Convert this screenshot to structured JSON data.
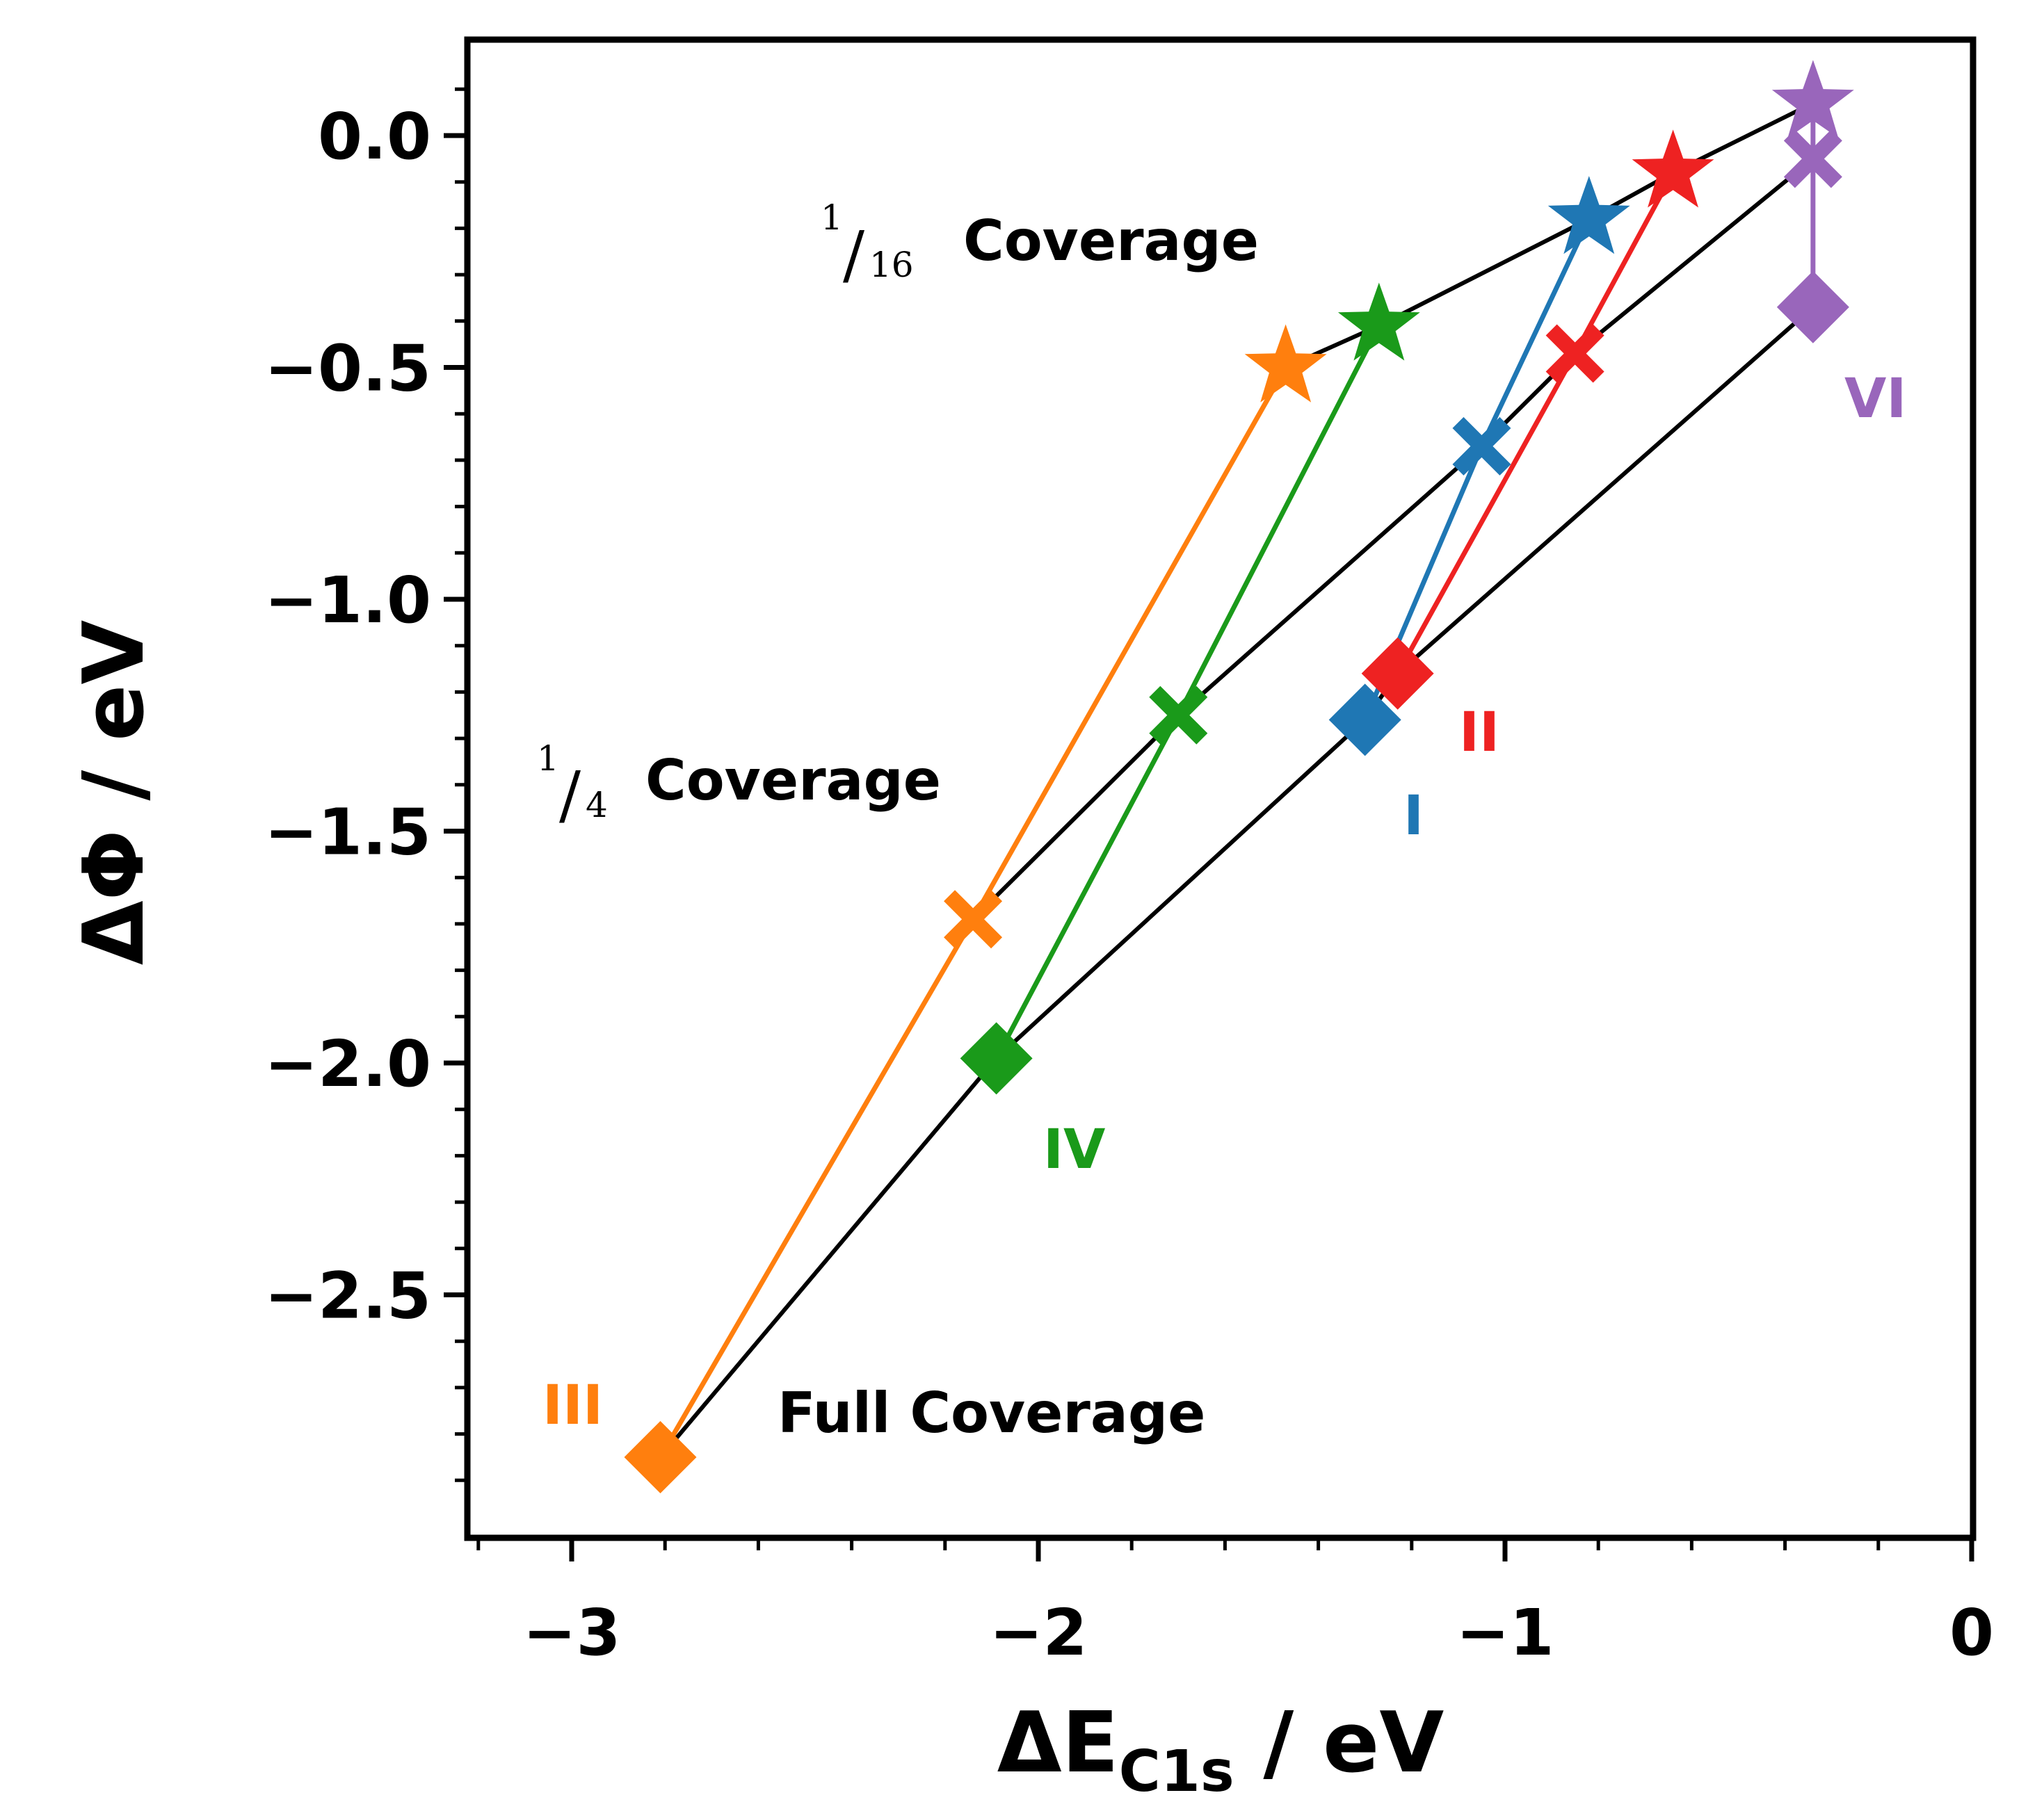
{
  "chart_data": {
    "type": "scatter",
    "xlabel_main": "ΔE",
    "xlabel_sub": "C1s",
    "xlabel_unit": " / eV",
    "ylabel": "ΔΦ / eV",
    "xlim": [
      -3.2,
      0.02
    ],
    "ylim": [
      -3.0,
      0.2
    ],
    "x_ticks": [
      -3,
      -2,
      -1,
      0
    ],
    "x_tick_labels": [
      "−3",
      "−2",
      "−1",
      "0"
    ],
    "y_ticks": [
      0.0,
      -0.5,
      -1.0,
      -1.5,
      -2.0,
      -2.5
    ],
    "y_tick_labels": [
      "0.0",
      "−0.5",
      "−1.0",
      "−1.5",
      "−2.0",
      "−2.5"
    ],
    "series": [
      {
        "name": "I",
        "color": "#1f77b4",
        "points": [
          {
            "x": -0.82,
            "y": -0.18,
            "marker": "star"
          },
          {
            "x": -1.05,
            "y": -0.67,
            "marker": "x"
          },
          {
            "x": -1.3,
            "y": -1.26,
            "marker": "diamond"
          }
        ]
      },
      {
        "name": "II",
        "color": "#ee2222",
        "points": [
          {
            "x": -0.64,
            "y": -0.08,
            "marker": "star"
          },
          {
            "x": -0.85,
            "y": -0.47,
            "marker": "x"
          },
          {
            "x": -1.23,
            "y": -1.16,
            "marker": "diamond"
          }
        ]
      },
      {
        "name": "III",
        "color": "#ff7f0e",
        "points": [
          {
            "x": -1.47,
            "y": -0.5,
            "marker": "star"
          },
          {
            "x": -2.14,
            "y": -1.69,
            "marker": "x"
          },
          {
            "x": -2.81,
            "y": -2.85,
            "marker": "diamond"
          }
        ]
      },
      {
        "name": "IV",
        "color": "#1a9a1a",
        "points": [
          {
            "x": -1.27,
            "y": -0.41,
            "marker": "star"
          },
          {
            "x": -1.7,
            "y": -1.25,
            "marker": "x"
          },
          {
            "x": -2.09,
            "y": -1.99,
            "marker": "diamond"
          }
        ]
      },
      {
        "name": "VI",
        "color": "#9966bb",
        "points": [
          {
            "x": -0.34,
            "y": 0.07,
            "marker": "star"
          },
          {
            "x": -0.34,
            "y": -0.05,
            "marker": "x"
          },
          {
            "x": -0.34,
            "y": -0.37,
            "marker": "diamond"
          }
        ]
      }
    ],
    "coverage_lines": [
      {
        "name": "1/16 Coverage",
        "points": [
          [
            -1.47,
            -0.5
          ],
          [
            -1.27,
            -0.41
          ],
          [
            -0.82,
            -0.18
          ],
          [
            -0.64,
            -0.08
          ],
          [
            -0.34,
            0.07
          ]
        ]
      },
      {
        "name": "1/4 Coverage",
        "points": [
          [
            -2.14,
            -1.69
          ],
          [
            -1.7,
            -1.25
          ],
          [
            -1.05,
            -0.67
          ],
          [
            -0.85,
            -0.47
          ],
          [
            -0.34,
            -0.05
          ]
        ]
      },
      {
        "name": "Full Coverage",
        "points": [
          [
            -2.81,
            -2.85
          ],
          [
            -2.09,
            -1.99
          ],
          [
            -1.3,
            -1.26
          ],
          [
            -1.23,
            -1.16
          ],
          [
            -0.34,
            -0.37
          ]
        ]
      }
    ],
    "annotations": {
      "cov16_num": "1",
      "cov16_den": "16",
      "cov16_text": "Coverage",
      "cov4_num": "1",
      "cov4_den": "4",
      "cov4_text": "Coverage",
      "full_text": "Full Coverage"
    }
  }
}
